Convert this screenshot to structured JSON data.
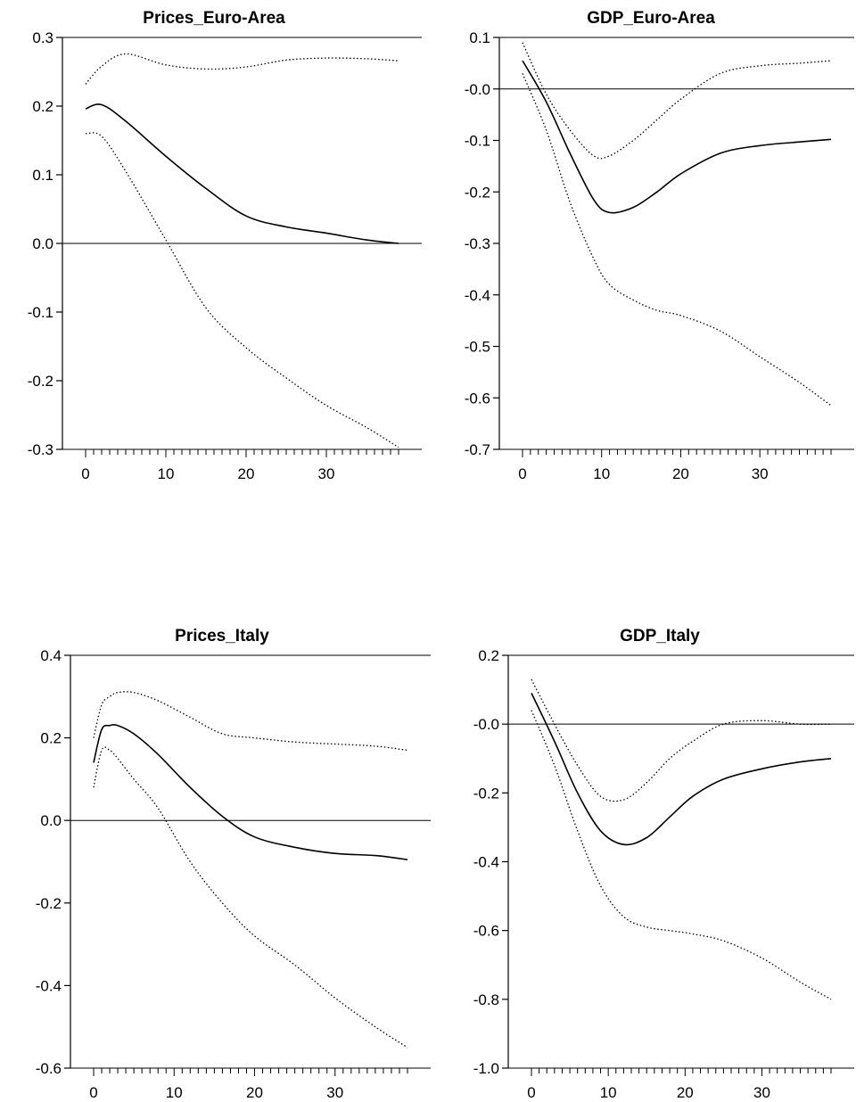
{
  "chart_data": [
    {
      "type": "line",
      "title": "Prices_Euro-Area",
      "xlabel": "",
      "ylabel": "",
      "xlim": [
        0,
        39
      ],
      "ylim": [
        -0.3,
        0.3
      ],
      "x_ticks": [
        "0",
        "10",
        "20",
        "30"
      ],
      "y_ticks": [
        "0.3",
        "0.2",
        "0.1",
        "0.0",
        "-0.1",
        "-0.2",
        "-0.3"
      ],
      "x": [
        0,
        2,
        5,
        10,
        15,
        20,
        25,
        30,
        35,
        39
      ],
      "series": [
        {
          "style": "solid",
          "values": [
            0.196,
            0.202,
            0.178,
            0.127,
            0.08,
            0.04,
            0.024,
            0.015,
            0.005,
            0.0
          ]
        },
        {
          "style": "dotted",
          "values": [
            0.232,
            0.258,
            0.276,
            0.26,
            0.254,
            0.257,
            0.267,
            0.27,
            0.269,
            0.266
          ]
        },
        {
          "style": "dotted",
          "values": [
            0.16,
            0.156,
            0.105,
            0.005,
            -0.094,
            -0.152,
            -0.196,
            -0.236,
            -0.268,
            -0.297
          ]
        }
      ]
    },
    {
      "type": "line",
      "title": "GDP_Euro-Area",
      "xlabel": "",
      "ylabel": "",
      "xlim": [
        0,
        39
      ],
      "ylim": [
        -0.7,
        0.1
      ],
      "x_ticks": [
        "0",
        "10",
        "20",
        "30"
      ],
      "y_ticks": [
        "0.1",
        "-0.0",
        "-0.1",
        "-0.2",
        "-0.3",
        "-0.4",
        "-0.5",
        "-0.6",
        "-0.7"
      ],
      "x": [
        0,
        3,
        6,
        9,
        11,
        14,
        17,
        20,
        25,
        30,
        35,
        39
      ],
      "series": [
        {
          "style": "solid",
          "values": [
            0.055,
            -0.025,
            -0.125,
            -0.215,
            -0.24,
            -0.23,
            -0.2,
            -0.165,
            -0.125,
            -0.11,
            -0.103,
            -0.098
          ]
        },
        {
          "style": "dotted",
          "values": [
            0.09,
            -0.01,
            -0.08,
            -0.13,
            -0.13,
            -0.1,
            -0.06,
            -0.02,
            0.03,
            0.045,
            0.05,
            0.055
          ]
        },
        {
          "style": "dotted",
          "values": [
            0.03,
            -0.08,
            -0.22,
            -0.33,
            -0.38,
            -0.41,
            -0.43,
            -0.44,
            -0.47,
            -0.52,
            -0.57,
            -0.615
          ]
        }
      ]
    },
    {
      "type": "line",
      "title": "Prices_Italy",
      "xlabel": "",
      "ylabel": "",
      "xlim": [
        0,
        39
      ],
      "ylim": [
        -0.6,
        0.4
      ],
      "x_ticks": [
        "0",
        "10",
        "20",
        "30"
      ],
      "y_ticks": [
        "0.4",
        "0.2",
        "0.0",
        "-0.2",
        "-0.4",
        "-0.6"
      ],
      "x": [
        0,
        1,
        2,
        3,
        5,
        8,
        12,
        16,
        20,
        25,
        30,
        35,
        39
      ],
      "series": [
        {
          "style": "solid",
          "values": [
            0.14,
            0.22,
            0.23,
            0.23,
            0.21,
            0.16,
            0.08,
            0.01,
            -0.04,
            -0.065,
            -0.08,
            -0.085,
            -0.095
          ]
        },
        {
          "style": "dotted",
          "values": [
            0.2,
            0.28,
            0.3,
            0.31,
            0.31,
            0.29,
            0.25,
            0.21,
            0.2,
            0.19,
            0.185,
            0.18,
            0.17
          ]
        },
        {
          "style": "dotted",
          "values": [
            0.08,
            0.17,
            0.17,
            0.15,
            0.1,
            0.03,
            -0.1,
            -0.2,
            -0.28,
            -0.35,
            -0.43,
            -0.5,
            -0.55
          ]
        }
      ]
    },
    {
      "type": "line",
      "title": "GDP_Italy",
      "xlabel": "",
      "ylabel": "",
      "xlim": [
        0,
        39
      ],
      "ylim": [
        -1.0,
        0.2
      ],
      "x_ticks": [
        "0",
        "10",
        "20",
        "30"
      ],
      "y_ticks": [
        "0.2",
        "-0.0",
        "-0.2",
        "-0.4",
        "-0.6",
        "-0.8",
        "-1.0"
      ],
      "x": [
        0,
        3,
        6,
        9,
        12,
        15,
        18,
        21,
        25,
        30,
        35,
        39
      ],
      "series": [
        {
          "style": "solid",
          "values": [
            0.09,
            -0.05,
            -0.2,
            -0.31,
            -0.35,
            -0.33,
            -0.27,
            -0.21,
            -0.16,
            -0.13,
            -0.11,
            -0.1
          ]
        },
        {
          "style": "dotted",
          "values": [
            0.13,
            0.0,
            -0.12,
            -0.21,
            -0.22,
            -0.17,
            -0.1,
            -0.05,
            0.0,
            0.01,
            0.0,
            0.0
          ]
        },
        {
          "style": "dotted",
          "values": [
            0.04,
            -0.12,
            -0.31,
            -0.47,
            -0.56,
            -0.59,
            -0.6,
            -0.61,
            -0.63,
            -0.68,
            -0.75,
            -0.8
          ]
        }
      ]
    }
  ]
}
